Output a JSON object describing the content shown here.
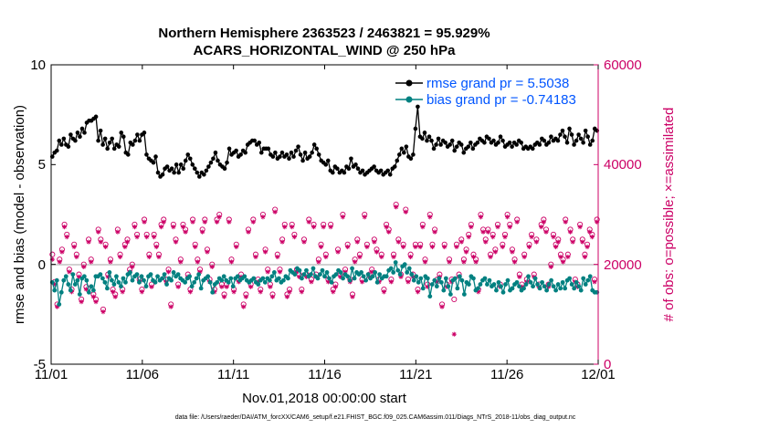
{
  "chart_data": {
    "type": "line",
    "title": "Northern Hemisphere 2363523 / 2463821 = 95.929%",
    "subtitle": "ACARS_HORIZONTAL_WIND @ 250 hPa",
    "xlabel": "Nov.01,2018 00:00:00 start",
    "ylabel_left": "rmse and bias (model - observation)",
    "ylabel_right": "# of obs: o=possible; ×=assimilated",
    "footer": "data file: /Users/raeder/DAI/ATM_forcXX/CAM6_setup/f.e21.FHIST_BGC.f09_025.CAM6assim.011/Diags_NTrS_2018-11/obs_diag_output.nc",
    "x_ticks": [
      "11/01",
      "11/06",
      "11/11",
      "11/16",
      "11/21",
      "11/26",
      "12/01"
    ],
    "xlim": [
      0,
      30
    ],
    "ylim_left": [
      -5,
      10
    ],
    "yticks_left": [
      "-5",
      "0",
      "5",
      "10"
    ],
    "ylim_right": [
      0,
      60000
    ],
    "yticks_right": [
      "0",
      "20000",
      "40000",
      "60000"
    ],
    "colors": {
      "rmse": "#000000",
      "bias": "#008080",
      "obs": "#cc0066",
      "legend_text": "#0055ff",
      "zero_line": "#b8b8b8"
    },
    "legend": [
      {
        "name": "rmse grand pr = 5.5038",
        "color": "#000000"
      },
      {
        "name": "bias grand pr = -0.74183",
        "color": "#008080"
      }
    ],
    "series": [
      {
        "name": "rmse",
        "axis": "left",
        "values": [
          5.4,
          5.6,
          5.7,
          6.2,
          6.0,
          6.3,
          6.0,
          5.9,
          6.5,
          6.3,
          6.2,
          6.6,
          6.4,
          6.8,
          6.6,
          7.1,
          7.2,
          7.2,
          7.3,
          7.4,
          6.2,
          6.7,
          6.0,
          6.3,
          5.8,
          6.1,
          6.3,
          5.8,
          6.0,
          5.9,
          6.6,
          6.4,
          5.6,
          5.5,
          6.1,
          6.0,
          6.2,
          6.5,
          6.2,
          6.5,
          6.6,
          5.5,
          5.3,
          5.2,
          5.1,
          5.4,
          4.6,
          4.4,
          4.5,
          4.8,
          4.9,
          4.7,
          4.8,
          4.6,
          5.0,
          4.6,
          5.0,
          4.8,
          5.2,
          5.5,
          5.3,
          5.0,
          4.8,
          4.6,
          4.4,
          4.6,
          4.5,
          4.7,
          4.9,
          5.1,
          5.3,
          5.6,
          5.2,
          5.0,
          4.9,
          4.8,
          5.1,
          5.8,
          5.5,
          5.6,
          5.7,
          5.4,
          5.5,
          5.7,
          5.6,
          6.0,
          6.1,
          6.2,
          6.2,
          6.0,
          6.1,
          5.6,
          5.8,
          5.8,
          5.8,
          5.5,
          5.4,
          5.6,
          5.3,
          5.4,
          5.6,
          5.4,
          5.5,
          5.3,
          5.6,
          5.4,
          5.7,
          5.9,
          5.5,
          5.2,
          5.6,
          5.3,
          5.4,
          5.6,
          6.0,
          5.8,
          5.5,
          5.2,
          5.1,
          5.0,
          5.2,
          4.7,
          4.6,
          4.9,
          4.8,
          4.6,
          4.7,
          4.6,
          4.9,
          4.8,
          5.3,
          4.9,
          5.0,
          4.8,
          4.6,
          4.7,
          4.5,
          4.6,
          4.7,
          4.8,
          4.9,
          4.7,
          4.6,
          4.7,
          4.5,
          4.6,
          4.7,
          4.5,
          4.8,
          4.9,
          5.2,
          5.5,
          5.8,
          5.6,
          5.9,
          5.4,
          5.3,
          5.5,
          6.8,
          7.9,
          6.4,
          6.3,
          6.6,
          6.2,
          6.4,
          6.2,
          5.8,
          6.0,
          6.3,
          6.0,
          6.2,
          6.1,
          5.9,
          6.0,
          6.2,
          5.7,
          5.9,
          6.1,
          6.0,
          5.6,
          5.8,
          5.9,
          6.1,
          5.8,
          6.0,
          6.1,
          6.3,
          6.2,
          6.1,
          6.4,
          6.3,
          6.1,
          6.2,
          6.0,
          6.1,
          6.4,
          6.2,
          5.9,
          6.0,
          6.1,
          5.9,
          6.1,
          6.0,
          6.2,
          6.1,
          5.8,
          5.9,
          5.8,
          5.9,
          5.8,
          6.0,
          6.1,
          6.0,
          6.3,
          6.2,
          6.0,
          6.1,
          6.4,
          6.2,
          6.3,
          6.2,
          6.5,
          6.7,
          6.4,
          6.1,
          6.8,
          6.5,
          6.0,
          6.2,
          6.5,
          6.3,
          6.1,
          6.7,
          6.4,
          6.0,
          6.2,
          6.8,
          6.7
        ]
      },
      {
        "name": "bias",
        "axis": "left",
        "values": [
          -0.9,
          -1.3,
          -0.8,
          -2.0,
          -1.4,
          -0.8,
          -0.6,
          -1.0,
          -1.3,
          -0.5,
          -1.0,
          -0.8,
          -1.5,
          -0.7,
          -0.6,
          -0.8,
          -1.4,
          -1.1,
          -1.3,
          -0.6,
          -0.6,
          -0.5,
          -0.7,
          -0.9,
          -1.2,
          -0.4,
          -0.8,
          -1.0,
          -0.6,
          -0.9,
          -1.1,
          -0.7,
          -0.9,
          -0.5,
          -0.4,
          -0.8,
          -0.6,
          -0.5,
          -0.9,
          -0.6,
          -0.8,
          -1.1,
          -0.6,
          -0.5,
          -0.8,
          -0.9,
          -0.6,
          -0.8,
          -0.7,
          -0.5,
          -1.0,
          -0.7,
          -0.8,
          -0.4,
          -0.6,
          -0.5,
          -0.7,
          -0.8,
          -0.9,
          -0.7,
          -0.6,
          -1.1,
          -0.9,
          -0.7,
          -0.5,
          -1.2,
          -0.8,
          -0.7,
          -0.6,
          -0.9,
          -1.4,
          -1.0,
          -0.9,
          -0.7,
          -0.8,
          -0.6,
          -0.8,
          -0.9,
          -0.7,
          -1.1,
          -0.7,
          -0.6,
          -0.8,
          -0.7,
          -0.6,
          -0.8,
          -0.9,
          -0.8,
          -0.7,
          -0.9,
          -1.0,
          -0.8,
          -0.7,
          -0.9,
          -0.7,
          -0.8,
          -0.6,
          -0.4,
          -0.8,
          -0.7,
          -0.9,
          -0.8,
          -0.6,
          -0.7,
          -0.3,
          -0.4,
          -0.5,
          -0.2,
          -0.3,
          -0.7,
          -0.5,
          -0.3,
          -0.6,
          -0.5,
          -0.2,
          -0.6,
          -0.7,
          -0.5,
          -0.3,
          -0.6,
          -0.4,
          -0.7,
          -0.9,
          -0.6,
          -0.5,
          -0.3,
          -0.4,
          -0.7,
          -0.5,
          -0.6,
          -0.8,
          -0.2,
          -0.7,
          -0.4,
          -0.5,
          -0.4,
          -0.6,
          -0.8,
          -0.5,
          -0.7,
          -0.6,
          -0.4,
          -0.9,
          -0.5,
          -0.7,
          -0.6,
          -0.6,
          -0.3,
          -0.2,
          -0.4,
          0.1,
          -0.3,
          -0.5,
          -0.1,
          0.0,
          -0.4,
          -0.2,
          -0.5,
          -0.8,
          -0.6,
          -0.9,
          -0.7,
          -1.2,
          -0.6,
          -0.7,
          -1.6,
          -1.0,
          -0.8,
          -1.1,
          -0.7,
          -0.9,
          -1.3,
          -0.7,
          -1.1,
          -1.5,
          -0.8,
          -0.7,
          -1.2,
          -0.6,
          -0.8,
          -1.5,
          -0.9,
          -1.0,
          -0.6,
          -0.7,
          -1.3,
          -1.2,
          -1.0,
          -0.8,
          -0.7,
          -1.0,
          -0.8,
          -1.1,
          -1.0,
          -1.3,
          -0.9,
          -1.1,
          -1.4,
          -1.0,
          -0.8,
          -1.3,
          -1.2,
          -1.0,
          -0.9,
          -1.1,
          -1.3,
          -1.2,
          -1.0,
          -0.6,
          -0.9,
          -1.1,
          -0.7,
          -1.0,
          -1.2,
          -0.9,
          -1.1,
          -1.3,
          -1.0,
          -0.8,
          -1.1,
          -1.3,
          -1.0,
          -1.2,
          -0.9,
          -1.2,
          -0.8,
          -0.7,
          -1.0,
          -1.2,
          -0.9,
          -1.1,
          -1.3,
          -0.7,
          -1.0,
          -0.8,
          -0.6,
          -1.3,
          -1.4,
          -1.4
        ]
      },
      {
        "name": "possible",
        "axis": "right",
        "values": [
          22000,
          16500,
          12000,
          21000,
          23000,
          28000,
          26000,
          19000,
          15000,
          24000,
          22000,
          18000,
          13000,
          20000,
          15500,
          25000,
          21000,
          14000,
          13000,
          27000,
          25000,
          11000,
          24000,
          18000,
          21000,
          15000,
          14000,
          27000,
          22000,
          15000,
          24000,
          25000,
          19000,
          20000,
          28000,
          26000,
          17000,
          15000,
          29000,
          26000,
          22000,
          16000,
          26000,
          24000,
          22000,
          28000,
          29000,
          17000,
          19000,
          12000,
          28000,
          25000,
          16000,
          21000,
          28000,
          27000,
          18000,
          15000,
          29000,
          24000,
          21000,
          19000,
          27000,
          29000,
          23000,
          17000,
          20000,
          15000,
          29000,
          30000,
          16000,
          14000,
          16000,
          29000,
          21000,
          15000,
          24000,
          17000,
          18000,
          12000,
          14000,
          27000,
          16000,
          29000,
          22000,
          17000,
          15000,
          30000,
          23000,
          19000,
          16000,
          14000,
          31000,
          22000,
          19000,
          25000,
          28000,
          14000,
          15000,
          28000,
          26000,
          19000,
          18000,
          15000,
          25000,
          18000,
          29000,
          17000,
          28000,
          18000,
          21000,
          24000,
          28000,
          22000,
          17000,
          28000,
          15000,
          16000,
          23000,
          18000,
          30000,
          19000,
          24000,
          17000,
          14000,
          21000,
          25000,
          22000,
          17000,
          30000,
          24000,
          18000,
          19000,
          25000,
          23000,
          17000,
          22000,
          15000,
          28000,
          27000,
          17000,
          22000,
          32000,
          25000,
          18000,
          24000,
          31000,
          17000,
          22000,
          18000,
          24000,
          15000,
          24000,
          28000,
          21000,
          16000,
          30000,
          24000,
          27000,
          17000,
          18000,
          12000,
          24000,
          16000,
          21000,
          17000,
          13000,
          24000,
          18000,
          25000,
          21000,
          23000,
          26000,
          28000,
          22000,
          21000,
          15000,
          30000,
          27000,
          25000,
          27000,
          22000,
          26000,
          23000,
          28000,
          16000,
          24000,
          26000,
          30000,
          28000,
          23000,
          21000,
          29000,
          18000,
          16000,
          22000,
          17000,
          24000,
          26000,
          18000,
          25000,
          16000,
          28000,
          29000,
          27000,
          16000,
          20000,
          26000,
          24000,
          25000,
          22000,
          21000,
          29000,
          22000,
          27000,
          25000,
          17000,
          16000,
          28000,
          25000,
          22000,
          24000,
          27000,
          26000,
          17000,
          29000
        ]
      },
      {
        "name": "assimilated",
        "axis": "right",
        "values": [
          21000,
          16000,
          11500,
          20500,
          22500,
          27500,
          25500,
          18500,
          14500,
          23500,
          21500,
          17500,
          12500,
          19500,
          15000,
          24500,
          20500,
          13500,
          12500,
          26500,
          24500,
          10500,
          23500,
          17500,
          20500,
          14500,
          13500,
          26500,
          21500,
          14500,
          23500,
          24500,
          18500,
          19500,
          27500,
          25500,
          16500,
          14500,
          28500,
          25500,
          21500,
          15500,
          25500,
          23500,
          21500,
          27500,
          28500,
          16500,
          18500,
          11500,
          27500,
          24500,
          15500,
          20500,
          27500,
          26500,
          17500,
          14500,
          28500,
          23500,
          20500,
          18500,
          26500,
          28500,
          22500,
          16500,
          19500,
          14500,
          28500,
          29500,
          15500,
          13500,
          15500,
          28500,
          20500,
          14500,
          23500,
          16500,
          17500,
          11500,
          13500,
          26500,
          15500,
          28500,
          21500,
          16500,
          14500,
          29500,
          22500,
          18500,
          15500,
          13500,
          30500,
          21500,
          18500,
          24500,
          27500,
          13500,
          14500,
          27500,
          25500,
          18500,
          17500,
          14500,
          24500,
          17500,
          28500,
          16500,
          27500,
          17500,
          20500,
          23500,
          27500,
          21500,
          16500,
          27500,
          14500,
          15500,
          22500,
          17500,
          29500,
          18500,
          23500,
          16500,
          13500,
          20500,
          24500,
          21500,
          16500,
          29500,
          23500,
          17500,
          18500,
          24500,
          22500,
          16500,
          21500,
          14500,
          27500,
          26500,
          16500,
          21500,
          31500,
          24500,
          17500,
          23500,
          30500,
          16500,
          21500,
          17500,
          23500,
          14500,
          23500,
          27500,
          20500,
          15500,
          29500,
          23500,
          26500,
          16500,
          17500,
          11500,
          23500,
          15500,
          20500,
          16500,
          6000,
          23500,
          17500,
          24500,
          20500,
          22500,
          25500,
          27500,
          21500,
          20500,
          14500,
          29500,
          26500,
          24500,
          26500,
          21500,
          25500,
          22500,
          27500,
          15500,
          23500,
          25500,
          29500,
          27500,
          22500,
          20500,
          28500,
          17500,
          15500,
          21500,
          16500,
          23500,
          25500,
          17500,
          24500,
          15500,
          27500,
          28500,
          26500,
          15500,
          19500,
          25500,
          23500,
          24500,
          21500,
          20500,
          28500,
          21500,
          26500,
          24500,
          16500,
          15500,
          27500,
          24500,
          21500,
          23500,
          26500,
          25500,
          16500,
          28500
        ]
      }
    ]
  }
}
